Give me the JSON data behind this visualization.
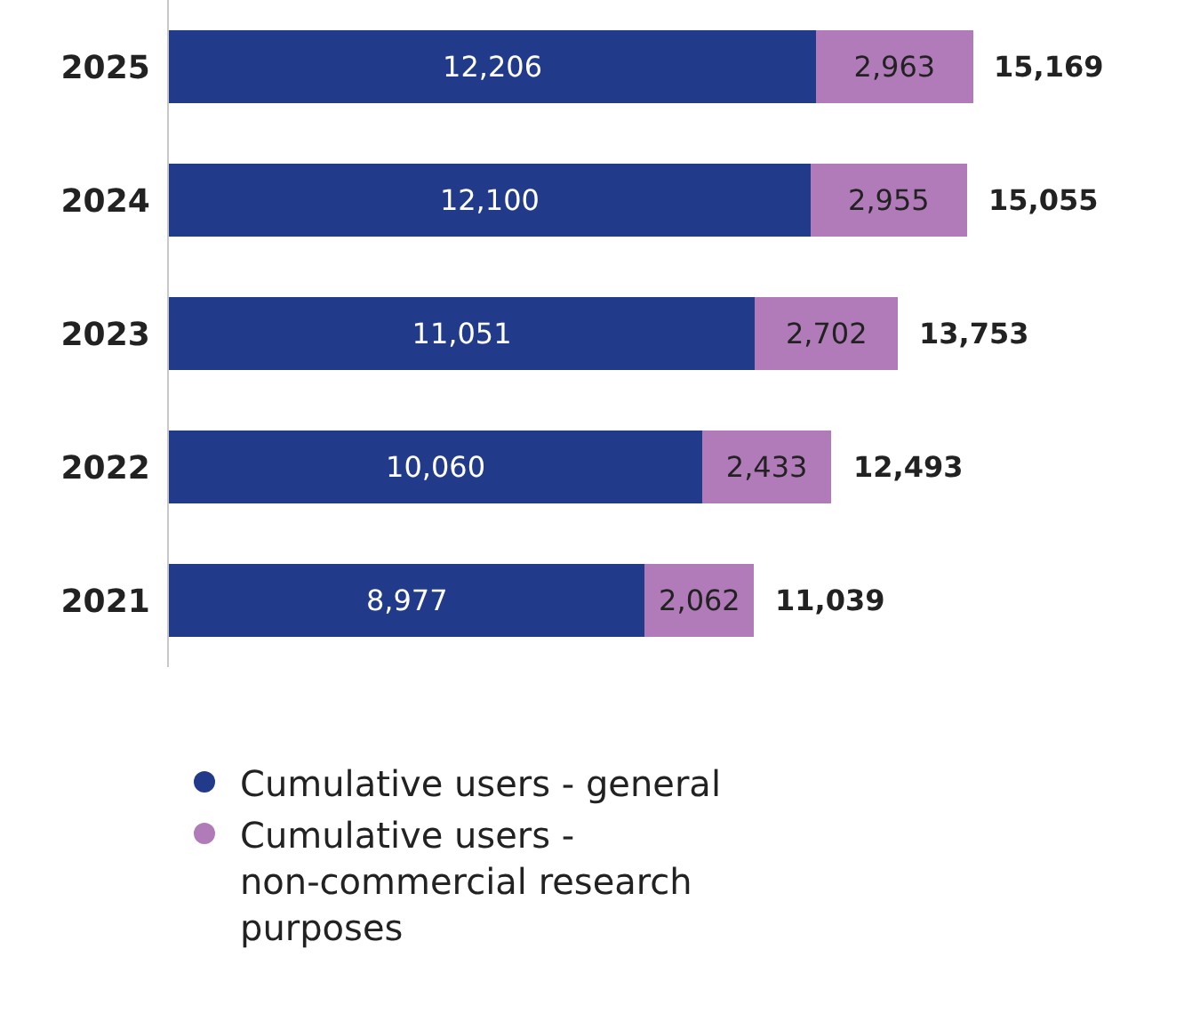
{
  "chart_data": {
    "type": "bar",
    "orientation": "horizontal",
    "stacked": true,
    "categories": [
      "2025",
      "2024",
      "2023",
      "2022",
      "2021"
    ],
    "series": [
      {
        "name": "Cumulative users - general",
        "color": "#213a8a",
        "values": [
          12206,
          12100,
          11051,
          10060,
          8977
        ],
        "value_labels": [
          "12,206",
          "12,100",
          "11,051",
          "10,060",
          "8,977"
        ]
      },
      {
        "name": "Cumulative users - non-commercial research purposes",
        "color": "#b07bb8",
        "values": [
          2963,
          2955,
          2702,
          2433,
          2062
        ],
        "value_labels": [
          "2,963",
          "2,955",
          "2,702",
          "2,433",
          "2,062"
        ]
      }
    ],
    "totals": [
      "15,169",
      "15,055",
      "13,753",
      "12,493",
      "11,039"
    ],
    "legend": "bottom",
    "marker": "circle",
    "tick_labels": "y",
    "grid": false
  }
}
